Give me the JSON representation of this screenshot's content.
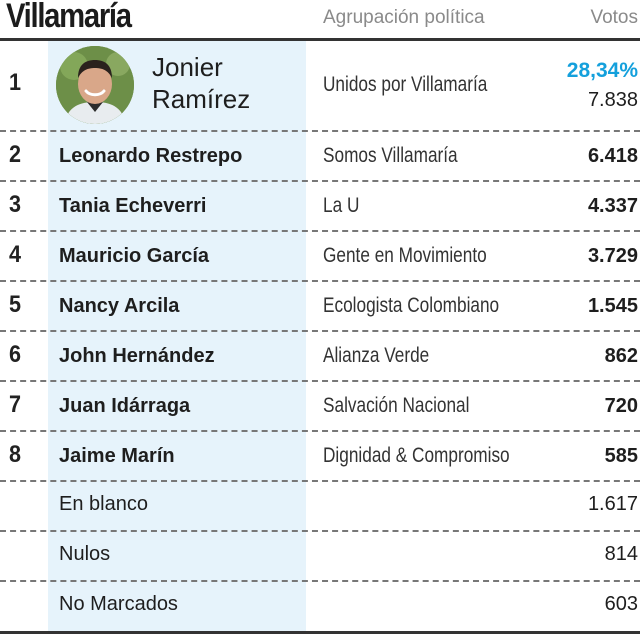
{
  "header": {
    "title": "Villamaría",
    "party_column": "Agrupación política",
    "votes_column": "Votos"
  },
  "winner": {
    "rank": "1",
    "first_name": "Jonier",
    "last_name": "Ramírez",
    "party": "Unidos por Villamaría",
    "percent": "28,34%",
    "votes": "7.838",
    "highlight_color": "#14a0dc"
  },
  "rows": [
    {
      "rank": "2",
      "name": "Leonardo Restrepo",
      "party": "Somos Villamaría",
      "votes": "6.418"
    },
    {
      "rank": "3",
      "name": "Tania Echeverri",
      "party": "La U",
      "votes": "4.337"
    },
    {
      "rank": "4",
      "name": "Mauricio García",
      "party": "Gente en Movimiento",
      "votes": "3.729"
    },
    {
      "rank": "5",
      "name": "Nancy Arcila",
      "party": "Ecologista Colombiano",
      "votes": "1.545"
    },
    {
      "rank": "6",
      "name": "John Hernández",
      "party": "Alianza Verde",
      "votes": "862"
    },
    {
      "rank": "7",
      "name": "Juan Idárraga",
      "party": "Salvación Nacional",
      "votes": "720"
    },
    {
      "rank": "8",
      "name": "Jaime Marín",
      "party": "Dignidad & Compromiso",
      "votes": "585"
    },
    {
      "rank": "",
      "name": "En blanco",
      "party": "",
      "votes": "1.617"
    },
    {
      "rank": "",
      "name": "Nulos",
      "party": "",
      "votes": "814"
    },
    {
      "rank": "",
      "name": "No Marcados",
      "party": "",
      "votes": "603"
    }
  ],
  "colors": {
    "name_band": "#e6f3fb",
    "rules": "#333333",
    "dashes": "#777777"
  }
}
